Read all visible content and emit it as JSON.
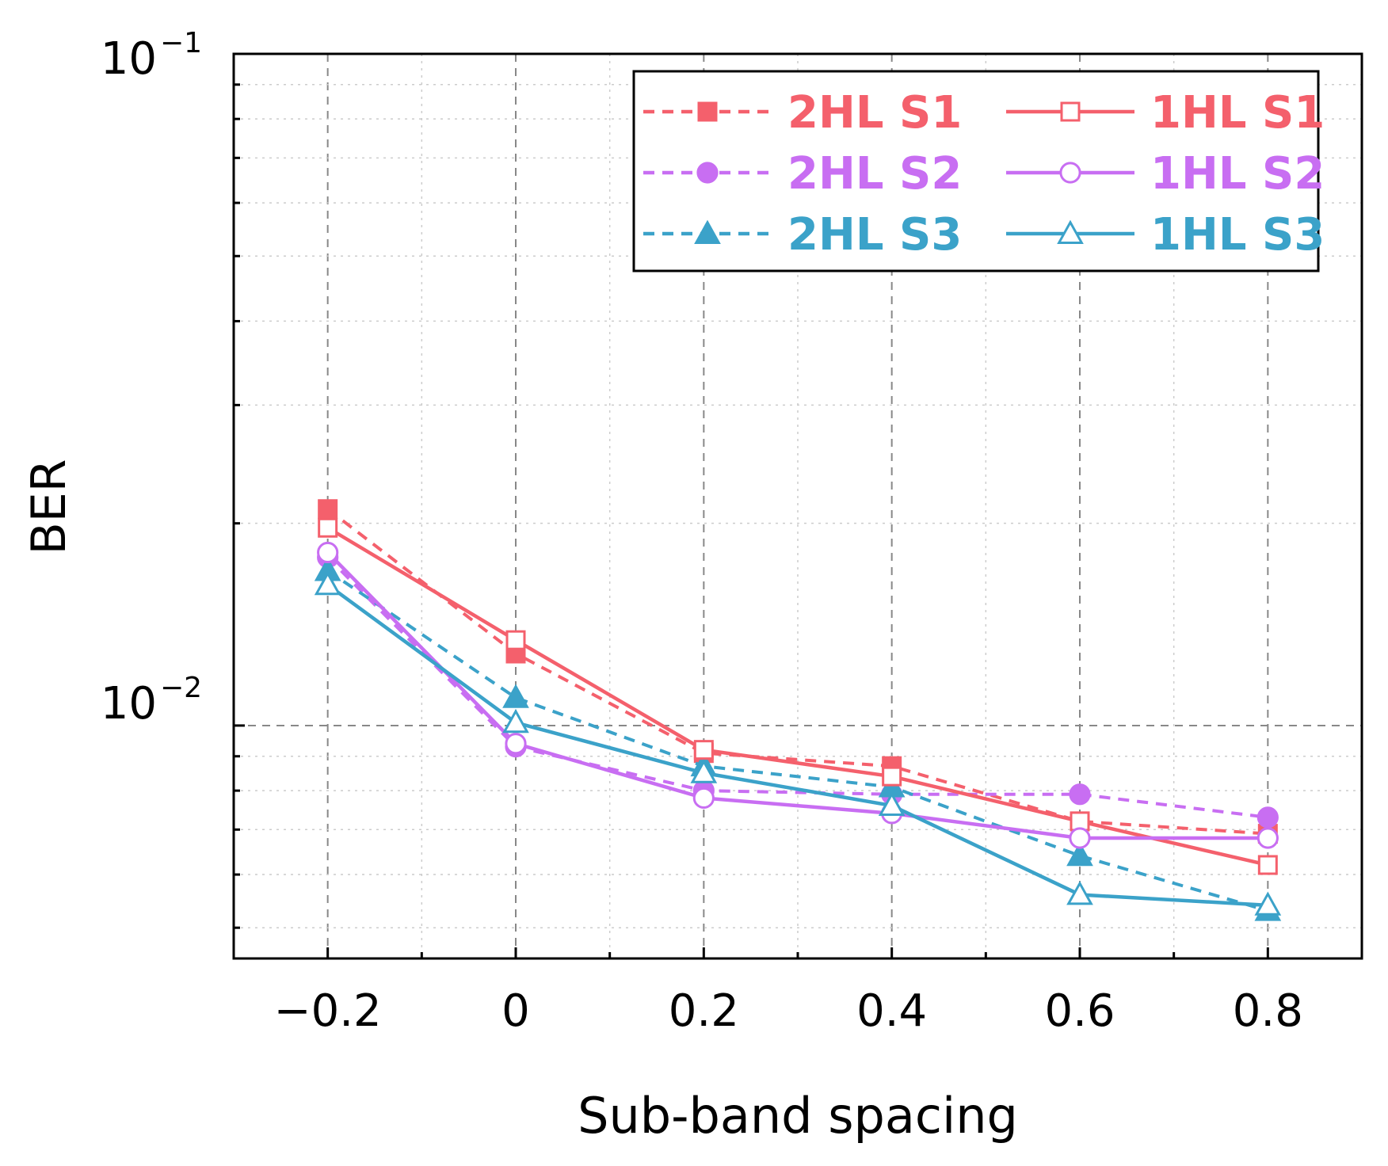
{
  "chart_data": {
    "type": "line",
    "title": "",
    "xlabel": "Sub-band spacing",
    "ylabel": "BER",
    "xscale": "linear",
    "yscale": "log",
    "xlim": [
      -0.3,
      0.9
    ],
    "ylim": [
      0.0045,
      0.1
    ],
    "grid": true,
    "legend_position": "top-right",
    "x_ticks": [
      {
        "value": -0.2,
        "label": "−0.2"
      },
      {
        "value": 0,
        "label": "0"
      },
      {
        "value": 0.2,
        "label": "0.2"
      },
      {
        "value": 0.4,
        "label": "0.4"
      },
      {
        "value": 0.6,
        "label": "0.6"
      },
      {
        "value": 0.8,
        "label": "0.8"
      }
    ],
    "y_ticks": [
      {
        "value": 0.1,
        "base": "10",
        "exponent": "−1"
      },
      {
        "value": 0.01,
        "base": "10",
        "exponent": "−2"
      }
    ],
    "x": [
      -0.2,
      0,
      0.2,
      0.4,
      0.6,
      0.8
    ],
    "series": [
      {
        "name": "2HL S1",
        "color": "#f4606c",
        "dash": true,
        "marker": "square",
        "filled": true,
        "values": [
          0.021,
          0.0128,
          0.0091,
          0.0087,
          0.0072,
          0.0069
        ]
      },
      {
        "name": "2HL S2",
        "color": "#c86ef2",
        "dash": true,
        "marker": "circle",
        "filled": true,
        "values": [
          0.0178,
          0.0093,
          0.008,
          0.0079,
          0.0079,
          0.0073
        ]
      },
      {
        "name": "2HL S3",
        "color": "#3ba2c9",
        "dash": true,
        "marker": "triangle",
        "filled": true,
        "values": [
          0.017,
          0.011,
          0.0087,
          0.0081,
          0.0064,
          0.0053
        ]
      },
      {
        "name": "1HL S1",
        "color": "#f4606c",
        "dash": false,
        "marker": "square",
        "filled": false,
        "values": [
          0.0197,
          0.0134,
          0.0092,
          0.0084,
          0.0072,
          0.0062
        ]
      },
      {
        "name": "1HL S2",
        "color": "#c86ef2",
        "dash": false,
        "marker": "circle",
        "filled": false,
        "values": [
          0.0181,
          0.0094,
          0.0078,
          0.0074,
          0.0068,
          0.0068
        ]
      },
      {
        "name": "1HL S3",
        "color": "#3ba2c9",
        "dash": false,
        "marker": "triangle",
        "filled": false,
        "values": [
          0.0162,
          0.0101,
          0.0085,
          0.0076,
          0.0056,
          0.0054
        ]
      }
    ]
  }
}
